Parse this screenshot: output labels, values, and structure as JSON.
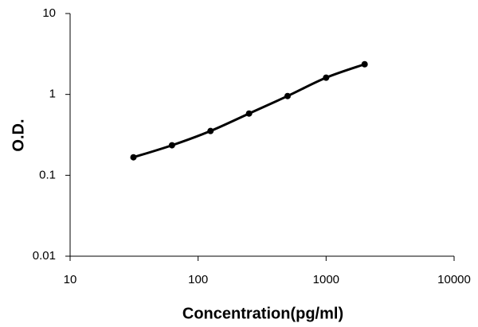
{
  "chart_data": {
    "type": "line",
    "x_label": "Concentration(pg/ml)",
    "y_label": "O.D.",
    "x": [
      31.25,
      62.5,
      125,
      250,
      500,
      1000,
      2000
    ],
    "series": [
      {
        "name": "O.D.",
        "color": "#000000",
        "values": [
          0.167,
          0.235,
          0.353,
          0.58,
          0.955,
          1.61,
          2.36
        ]
      }
    ],
    "xscale": "log",
    "yscale": "log",
    "xlim": [
      10,
      10000
    ],
    "xticks": [
      10,
      100,
      1000,
      10000
    ],
    "ylim": [
      0.01,
      10
    ],
    "yticks": [
      0.01,
      0.1,
      1,
      10
    ],
    "grid": false,
    "legend": false
  }
}
